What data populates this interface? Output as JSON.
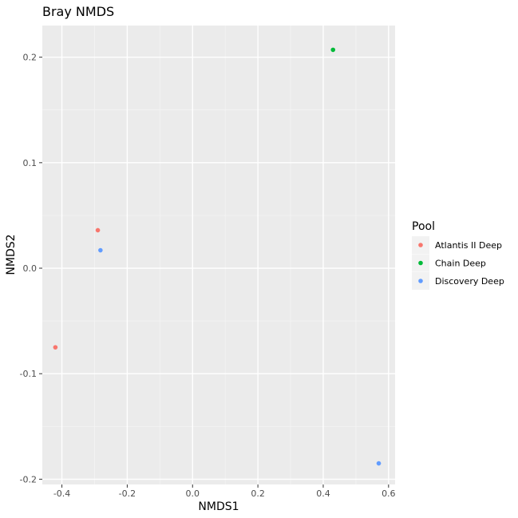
{
  "chart_data": {
    "type": "scatter",
    "title": "Bray NMDS",
    "xlabel": "NMDS1",
    "ylabel": "NMDS2",
    "xlim": [
      -0.46,
      0.62
    ],
    "ylim": [
      -0.205,
      0.23
    ],
    "x_ticks": [
      -0.4,
      -0.2,
      0.0,
      0.2,
      0.4,
      0.6
    ],
    "x_tick_labels": [
      "-0.4",
      "-0.2",
      "0.0",
      "0.2",
      "0.4",
      "0.6"
    ],
    "y_ticks": [
      0.2,
      0.1,
      0.0,
      -0.1,
      -0.2
    ],
    "y_tick_labels": [
      "0.2",
      "0.1",
      "0.0",
      "-0.1",
      "-0.2"
    ],
    "grid": true,
    "legend": {
      "title": "Pool",
      "placement": "right",
      "entries": [
        {
          "label": "Atlantis II Deep",
          "color": "#F8766D"
        },
        {
          "label": "Chain Deep",
          "color": "#00BA38"
        },
        {
          "label": "Discovery Deep",
          "color": "#619CFF"
        }
      ]
    },
    "series": [
      {
        "name": "Atlantis II Deep",
        "color": "#F8766D",
        "points": [
          {
            "x": -0.29,
            "y": 0.036
          },
          {
            "x": -0.42,
            "y": -0.075
          }
        ]
      },
      {
        "name": "Chain Deep",
        "color": "#00BA38",
        "points": [
          {
            "x": 0.43,
            "y": 0.207
          }
        ]
      },
      {
        "name": "Discovery Deep",
        "color": "#619CFF",
        "points": [
          {
            "x": -0.282,
            "y": 0.017
          },
          {
            "x": 0.57,
            "y": -0.185
          }
        ]
      }
    ]
  }
}
